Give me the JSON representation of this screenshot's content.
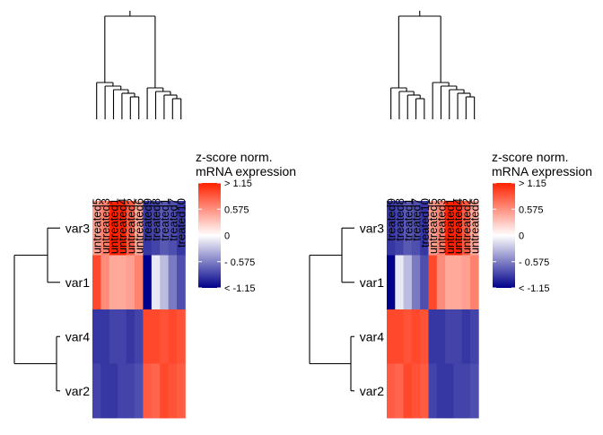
{
  "chart_data": [
    {
      "type": "heatmap",
      "rows": [
        "var3",
        "var1",
        "var4",
        "var2"
      ],
      "columns": [
        "untreated5",
        "untreated3",
        "untreated1",
        "untreated4",
        "untreated2",
        "untreated6",
        "treated9",
        "treated8",
        "treated1",
        "treated7",
        "treated10"
      ],
      "values": [
        [
          0.5,
          0.65,
          1.15,
          1.15,
          0.85,
          0.45,
          -0.9,
          -0.85,
          -0.75,
          -0.8,
          -0.9
        ],
        [
          0.95,
          0.6,
          0.45,
          0.45,
          0.5,
          0.65,
          -1.15,
          -0.1,
          -0.3,
          -0.6,
          -0.8
        ],
        [
          -0.9,
          -0.9,
          -0.85,
          -0.85,
          -0.9,
          -0.85,
          0.95,
          0.95,
          0.9,
          0.95,
          0.9
        ],
        [
          -0.85,
          -0.9,
          -0.9,
          -0.85,
          -0.85,
          -0.8,
          0.85,
          0.8,
          0.95,
          0.9,
          0.85
        ]
      ],
      "legend": {
        "title_line1": "z-score norm.",
        "title_line2": "mRNA expression",
        "tick_labels": [
          "> 1.15",
          "0.575",
          "0",
          "- 0.575",
          "< -1.15"
        ],
        "tick_values": [
          1.15,
          0.575,
          0,
          -0.575,
          -1.15
        ],
        "color_low": "#00008b",
        "color_mid": "#ffffff",
        "color_high": "#ff2200"
      },
      "row_dendrogram": true,
      "column_dendrogram": true
    },
    {
      "type": "heatmap",
      "rows": [
        "var3",
        "var1",
        "var4",
        "var2"
      ],
      "columns": [
        "treated9",
        "treated8",
        "treated1",
        "treated7",
        "treated10",
        "untreated5",
        "untreated3",
        "untreated1",
        "untreated4",
        "untreated2",
        "untreated6"
      ],
      "values": [
        [
          -0.9,
          -0.85,
          -0.75,
          -0.8,
          -0.9,
          0.5,
          0.65,
          1.15,
          1.15,
          0.85,
          0.45
        ],
        [
          -1.15,
          -0.1,
          -0.3,
          -0.6,
          -0.8,
          0.95,
          0.6,
          0.45,
          0.45,
          0.5,
          0.65
        ],
        [
          0.95,
          0.95,
          0.9,
          0.95,
          0.9,
          -0.9,
          -0.9,
          -0.85,
          -0.85,
          -0.9,
          -0.85
        ],
        [
          0.85,
          0.8,
          0.95,
          0.9,
          0.85,
          -0.85,
          -0.9,
          -0.9,
          -0.85,
          -0.85,
          -0.8
        ]
      ],
      "legend": {
        "title_line1": "z-score norm.",
        "title_line2": "mRNA expression",
        "tick_labels": [
          "> 1.15",
          "0.575",
          "0",
          "- 0.575",
          "< -1.15"
        ],
        "tick_values": [
          1.15,
          0.575,
          0,
          -0.575,
          -1.15
        ],
        "color_low": "#00008b",
        "color_mid": "#ffffff",
        "color_high": "#ff2200"
      },
      "row_dendrogram": true,
      "column_dendrogram": true
    }
  ]
}
